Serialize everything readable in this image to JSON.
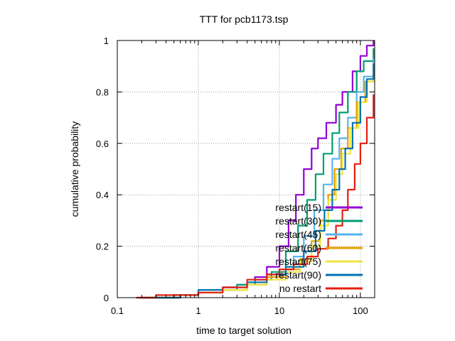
{
  "chart_data": {
    "type": "line",
    "title": "TTT for pcb1173.tsp",
    "xlabel": "time to target solution",
    "ylabel": "cumulative probability",
    "xscale": "log",
    "xlim": [
      0.1,
      150
    ],
    "ylim": [
      0,
      1
    ],
    "x_ticks": [
      {
        "value": 0.1,
        "label": "0.1"
      },
      {
        "value": 1,
        "label": "1"
      },
      {
        "value": 10,
        "label": "10"
      },
      {
        "value": 100,
        "label": "100"
      }
    ],
    "y_ticks": [
      {
        "value": 0,
        "label": "0"
      },
      {
        "value": 0.2,
        "label": "0.2"
      },
      {
        "value": 0.4,
        "label": "0.4"
      },
      {
        "value": 0.6,
        "label": "0.6"
      },
      {
        "value": 0.8,
        "label": "0.8"
      },
      {
        "value": 1,
        "label": "1"
      }
    ],
    "grid": true,
    "legend_position": "bottom-right",
    "series": [
      {
        "name": "restart(15)",
        "color": "#9400d3",
        "points": [
          [
            0.18,
            0.0
          ],
          [
            0.5,
            0.01
          ],
          [
            1.0,
            0.02
          ],
          [
            2.0,
            0.04
          ],
          [
            3.0,
            0.05
          ],
          [
            5.0,
            0.08
          ],
          [
            7.0,
            0.12
          ],
          [
            10.0,
            0.2
          ],
          [
            13.0,
            0.3
          ],
          [
            16.0,
            0.4
          ],
          [
            20.0,
            0.5
          ],
          [
            25.0,
            0.58
          ],
          [
            30.0,
            0.62
          ],
          [
            38.0,
            0.68
          ],
          [
            50.0,
            0.75
          ],
          [
            60.0,
            0.8
          ],
          [
            80.0,
            0.88
          ],
          [
            100.0,
            0.94
          ],
          [
            120.0,
            0.98
          ],
          [
            145.0,
            1.0
          ]
        ]
      },
      {
        "name": "restart(30)",
        "color": "#009e73",
        "points": [
          [
            0.2,
            0.0
          ],
          [
            0.5,
            0.01
          ],
          [
            1.0,
            0.02
          ],
          [
            2.0,
            0.03
          ],
          [
            3.0,
            0.05
          ],
          [
            5.0,
            0.07
          ],
          [
            8.0,
            0.1
          ],
          [
            12.0,
            0.18
          ],
          [
            17.0,
            0.28
          ],
          [
            22.0,
            0.38
          ],
          [
            28.0,
            0.48
          ],
          [
            35.0,
            0.56
          ],
          [
            45.0,
            0.64
          ],
          [
            55.0,
            0.72
          ],
          [
            70.0,
            0.8
          ],
          [
            90.0,
            0.88
          ],
          [
            110.0,
            0.92
          ],
          [
            145.0,
            0.97
          ]
        ]
      },
      {
        "name": "restart(45)",
        "color": "#56b4e9",
        "points": [
          [
            0.2,
            0.0
          ],
          [
            0.6,
            0.01
          ],
          [
            1.0,
            0.02
          ],
          [
            2.0,
            0.03
          ],
          [
            4.0,
            0.05
          ],
          [
            7.0,
            0.08
          ],
          [
            10.0,
            0.11
          ],
          [
            15.0,
            0.16
          ],
          [
            20.0,
            0.24
          ],
          [
            27.0,
            0.34
          ],
          [
            35.0,
            0.44
          ],
          [
            45.0,
            0.54
          ],
          [
            55.0,
            0.62
          ],
          [
            70.0,
            0.7
          ],
          [
            90.0,
            0.8
          ],
          [
            110.0,
            0.86
          ],
          [
            145.0,
            0.93
          ]
        ]
      },
      {
        "name": "restart(60)",
        "color": "#e69f00",
        "points": [
          [
            0.2,
            0.0
          ],
          [
            0.6,
            0.01
          ],
          [
            1.0,
            0.02
          ],
          [
            2.0,
            0.03
          ],
          [
            4.0,
            0.05
          ],
          [
            7.0,
            0.08
          ],
          [
            12.0,
            0.11
          ],
          [
            18.0,
            0.15
          ],
          [
            25.0,
            0.22
          ],
          [
            32.0,
            0.3
          ],
          [
            40.0,
            0.4
          ],
          [
            48.0,
            0.5
          ],
          [
            58.0,
            0.58
          ],
          [
            70.0,
            0.66
          ],
          [
            90.0,
            0.76
          ],
          [
            115.0,
            0.84
          ],
          [
            145.0,
            0.9
          ]
        ]
      },
      {
        "name": "restart(75)",
        "color": "#f0e442",
        "points": [
          [
            0.2,
            0.0
          ],
          [
            0.6,
            0.01
          ],
          [
            1.0,
            0.02
          ],
          [
            2.0,
            0.03
          ],
          [
            4.0,
            0.05
          ],
          [
            7.0,
            0.07
          ],
          [
            12.0,
            0.1
          ],
          [
            18.0,
            0.14
          ],
          [
            25.0,
            0.2
          ],
          [
            32.0,
            0.28
          ],
          [
            40.0,
            0.38
          ],
          [
            50.0,
            0.48
          ],
          [
            60.0,
            0.56
          ],
          [
            75.0,
            0.66
          ],
          [
            95.0,
            0.76
          ],
          [
            120.0,
            0.84
          ],
          [
            145.0,
            0.89
          ]
        ]
      },
      {
        "name": "restart(90)",
        "color": "#0072b2",
        "points": [
          [
            0.2,
            0.0
          ],
          [
            0.6,
            0.01
          ],
          [
            1.0,
            0.03
          ],
          [
            2.0,
            0.04
          ],
          [
            4.0,
            0.06
          ],
          [
            7.0,
            0.09
          ],
          [
            12.0,
            0.12
          ],
          [
            20.0,
            0.18
          ],
          [
            28.0,
            0.26
          ],
          [
            36.0,
            0.34
          ],
          [
            45.0,
            0.42
          ],
          [
            55.0,
            0.5
          ],
          [
            65.0,
            0.58
          ],
          [
            80.0,
            0.68
          ],
          [
            100.0,
            0.78
          ],
          [
            120.0,
            0.85
          ],
          [
            145.0,
            0.91
          ]
        ]
      },
      {
        "name": "no restart",
        "color": "#e51e10",
        "points": [
          [
            0.17,
            0.0
          ],
          [
            0.3,
            0.01
          ],
          [
            1.0,
            0.02
          ],
          [
            2.0,
            0.04
          ],
          [
            4.0,
            0.07
          ],
          [
            7.0,
            0.09
          ],
          [
            10.0,
            0.11
          ],
          [
            15.0,
            0.13
          ],
          [
            22.0,
            0.16
          ],
          [
            30.0,
            0.19
          ],
          [
            40.0,
            0.23
          ],
          [
            50.0,
            0.28
          ],
          [
            60.0,
            0.34
          ],
          [
            70.0,
            0.42
          ],
          [
            85.0,
            0.52
          ],
          [
            100.0,
            0.6
          ],
          [
            120.0,
            0.7
          ],
          [
            145.0,
            0.79
          ]
        ]
      }
    ]
  }
}
